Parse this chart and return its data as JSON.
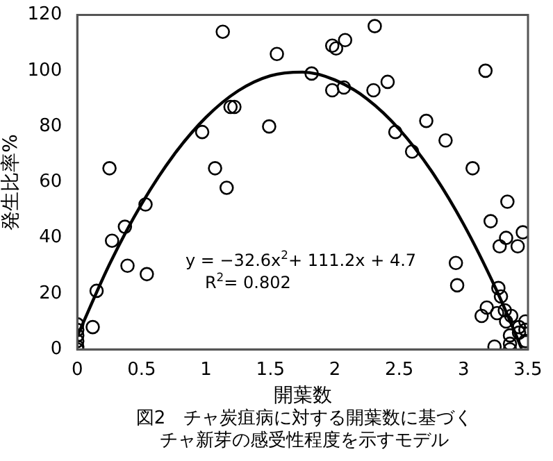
{
  "chart_data": {
    "type": "scatter",
    "title": "図2　チャ炭疽病に対する開葉数に基づくチャ新芽の感受性程度を示すモデル",
    "xlabel": "開葉数",
    "ylabel": "発生比率%",
    "annotations": [
      "y = −32.6x$^{2}$+ 111.2x + 4.7",
      "R$^{2}$= 0.802"
    ],
    "xlim": [
      0,
      3.5
    ],
    "xticks": [
      0,
      0.5,
      1,
      1.5,
      2,
      2.5,
      3,
      3.5
    ],
    "ylim": [
      0,
      120
    ],
    "yticks": [
      0,
      20,
      40,
      60,
      80,
      100,
      120
    ],
    "grid": false,
    "legend": false,
    "marker": "circle",
    "series": [
      {
        "color": "#000000",
        "x": [
          0,
          0,
          0,
          0,
          0,
          0,
          0.12,
          0.15,
          0.25,
          0.27,
          0.37,
          0.39,
          0.53,
          0.54,
          0.97,
          1.07,
          1.13,
          1.16,
          1.19,
          1.22,
          1.49,
          1.55,
          1.82,
          1.98,
          2.01,
          2.08,
          1.98,
          2.07,
          2.31,
          2.3,
          2.41,
          2.47,
          2.71,
          2.6,
          2.86,
          3.07,
          3.17,
          3.34,
          3.21,
          3.33,
          3.46,
          3.28,
          3.42,
          2.94,
          2.95,
          3.27,
          3.29,
          3.18,
          3.14,
          3.26,
          3.32,
          3.37,
          3.33,
          3.43,
          3.48,
          3.48,
          3.36,
          3.48,
          3.24,
          3.36,
          3.36,
          3.43
        ],
        "values": [
          9,
          7,
          5,
          3,
          1,
          0,
          8,
          21,
          65,
          39,
          44,
          30,
          52,
          27,
          78,
          65,
          114,
          58,
          87,
          87,
          80,
          106,
          99,
          109,
          108,
          111,
          93,
          94,
          116,
          93,
          96,
          78,
          82,
          71,
          75,
          65,
          100,
          53,
          46,
          40,
          42,
          37,
          37,
          31,
          23,
          22,
          19,
          15,
          12,
          13,
          14,
          12,
          10,
          8,
          10,
          7,
          5,
          3,
          1,
          2,
          0,
          6
        ]
      },
      {
        "type": "line",
        "color": "#000000",
        "marker": "none",
        "x": [
          0,
          0.25,
          0.5,
          0.75,
          1,
          1.25,
          1.5,
          1.75,
          2,
          2.25,
          2.5,
          2.75,
          3,
          3.25,
          3.4,
          3.45
        ],
        "values": [
          4.7,
          30.5,
          52.2,
          69.8,
          83.3,
          92.8,
          98.2,
          99.5,
          96.7,
          89.9,
          79,
          64,
          44.9,
          21.8,
          5.9,
          0.3
        ]
      }
    ]
  }
}
